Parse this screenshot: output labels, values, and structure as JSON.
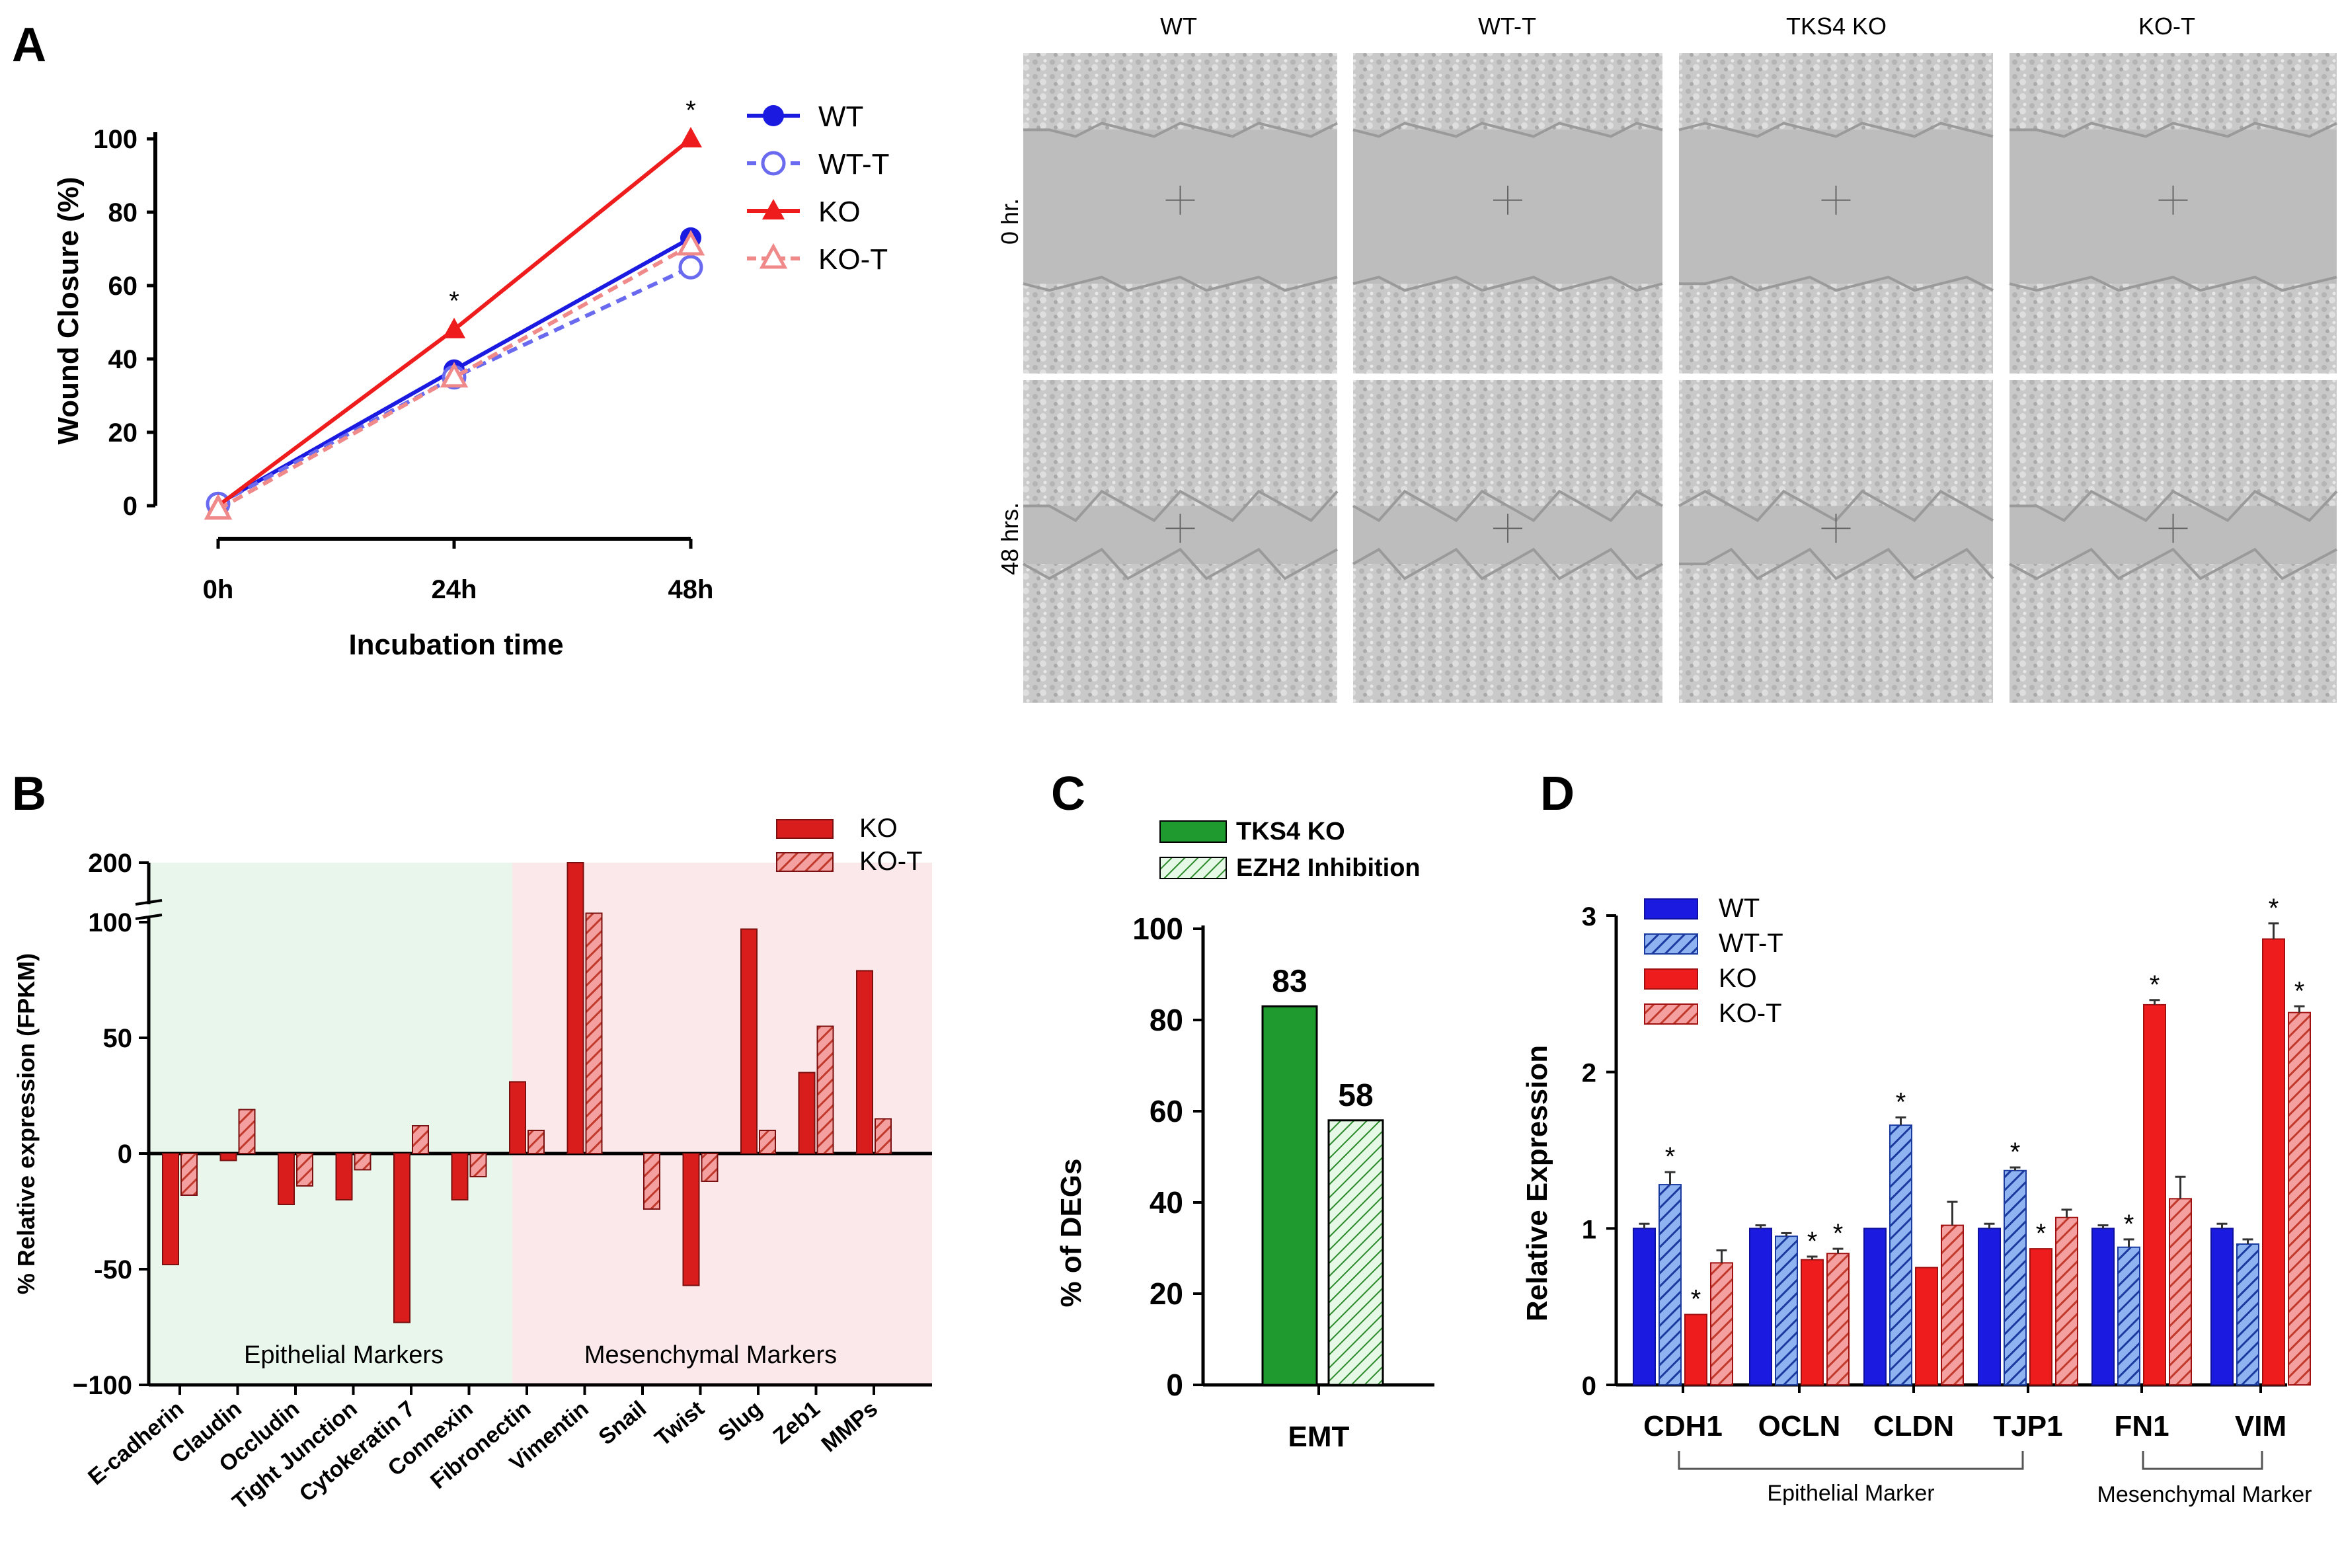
{
  "panels": {
    "A": "A",
    "B": "B",
    "C": "C",
    "D": "D"
  },
  "colors": {
    "wt": "#1a1ae0",
    "wt_t": "#6a6af0",
    "ko": "#ee1c1c",
    "ko_t": "#f08a8a",
    "epi_bg": "#e8f6ec",
    "mes_bg": "#fbe8ea",
    "c_solid": "#1f9a2f",
    "c_hatch": "#b8eabc"
  },
  "chart_data": [
    {
      "panel": "A",
      "type": "line",
      "title": "",
      "xlabel": "Incubation time",
      "ylabel": "Wound Closure (%)",
      "categories": [
        "0h",
        "24h",
        "48h"
      ],
      "ylim": [
        0,
        100
      ],
      "yticks": [
        0,
        20,
        40,
        60,
        80,
        100
      ],
      "series": [
        {
          "name": "WT",
          "values": [
            0.5,
            37,
            73
          ],
          "marker": "filled-circle",
          "style": "solid",
          "color": "#1a1ae0"
        },
        {
          "name": "WT-T",
          "values": [
            0.5,
            35,
            65
          ],
          "marker": "open-circle",
          "style": "dashed",
          "color": "#6a6af0"
        },
        {
          "name": "KO",
          "values": [
            0,
            48,
            100
          ],
          "marker": "filled-triangle",
          "style": "solid",
          "color": "#ee1c1c"
        },
        {
          "name": "KO-T",
          "values": [
            -1,
            35,
            71
          ],
          "marker": "open-triangle",
          "style": "dashed",
          "color": "#f08a8a"
        }
      ],
      "annotations": [
        {
          "category": "24h",
          "text": "*"
        },
        {
          "category": "48h",
          "text": "*"
        }
      ]
    },
    {
      "panel": "B",
      "type": "bar",
      "ylabel": "% Relative expression (FPKM)",
      "categories": [
        "E-cadherin",
        "Claudin",
        "Occludin",
        "Tight Junction",
        "Cytokeratin 7",
        "Connexin",
        "Fibronectin",
        "Vimentin",
        "Snail",
        "Twist",
        "Slug",
        "Zeb1",
        "MMPs"
      ],
      "series": [
        {
          "name": "KO",
          "values": [
            -48,
            -3,
            -22,
            -20,
            -73,
            -20,
            31,
            200,
            0,
            -57,
            97,
            35,
            79
          ]
        },
        {
          "name": "KO-T",
          "values": [
            -18,
            19,
            -14,
            -7,
            12,
            -10,
            10,
            115,
            -24,
            -12,
            10,
            55,
            15
          ]
        }
      ],
      "yticks": [
        "200",
        "100",
        "50",
        "0",
        "-50",
        "−100"
      ],
      "axis_break": [
        100,
        200
      ],
      "regions": [
        "Epithelial Markers",
        "Mesenchymal Markers"
      ]
    },
    {
      "panel": "C",
      "type": "bar",
      "ylabel": "% of DEGs",
      "categories": [
        "EMT"
      ],
      "ylim": [
        0,
        100
      ],
      "yticks": [
        0,
        20,
        40,
        60,
        80,
        100
      ],
      "series": [
        {
          "name": "TKS4 KO",
          "values": [
            83
          ]
        },
        {
          "name": "EZH2 Inhibition",
          "values": [
            58
          ]
        }
      ]
    },
    {
      "panel": "D",
      "type": "bar",
      "ylabel": "Relative Expression",
      "categories": [
        "CDH1",
        "OCLN",
        "CLDN",
        "TJP1",
        "FN1",
        "VIM"
      ],
      "ylim": [
        0,
        3
      ],
      "yticks": [
        0,
        1,
        2,
        3
      ],
      "series": [
        {
          "name": "WT",
          "values": [
            1.0,
            1.0,
            1.0,
            1.0,
            1.0,
            1.0
          ],
          "errors": [
            0.03,
            0.02,
            0.0,
            0.03,
            0.02,
            0.03
          ],
          "stars": [
            false,
            false,
            false,
            false,
            false,
            false
          ]
        },
        {
          "name": "WT-T",
          "values": [
            1.28,
            0.95,
            1.66,
            1.37,
            0.88,
            0.9
          ],
          "errors": [
            0.08,
            0.02,
            0.05,
            0.02,
            0.05,
            0.03
          ],
          "stars": [
            true,
            false,
            true,
            true,
            true,
            false
          ]
        },
        {
          "name": "KO",
          "values": [
            0.45,
            0.8,
            0.75,
            0.87,
            2.43,
            2.85
          ],
          "errors": [
            0.0,
            0.02,
            0.0,
            0.0,
            0.03,
            0.1
          ],
          "stars": [
            true,
            true,
            false,
            true,
            true,
            true
          ]
        },
        {
          "name": "KO-T",
          "values": [
            0.78,
            0.84,
            1.02,
            1.07,
            1.19,
            2.38
          ],
          "errors": [
            0.08,
            0.03,
            0.15,
            0.05,
            0.14,
            0.04
          ],
          "stars": [
            false,
            true,
            false,
            false,
            false,
            true
          ]
        }
      ],
      "brackets": [
        "Epithelial Marker",
        "Mesenchymal Marker"
      ]
    }
  ],
  "micrographs": {
    "columns": [
      "WT",
      "WT-T",
      "TKS4 KO",
      "KO-T"
    ],
    "rows": [
      "0 hr.",
      "48 hrs."
    ]
  }
}
